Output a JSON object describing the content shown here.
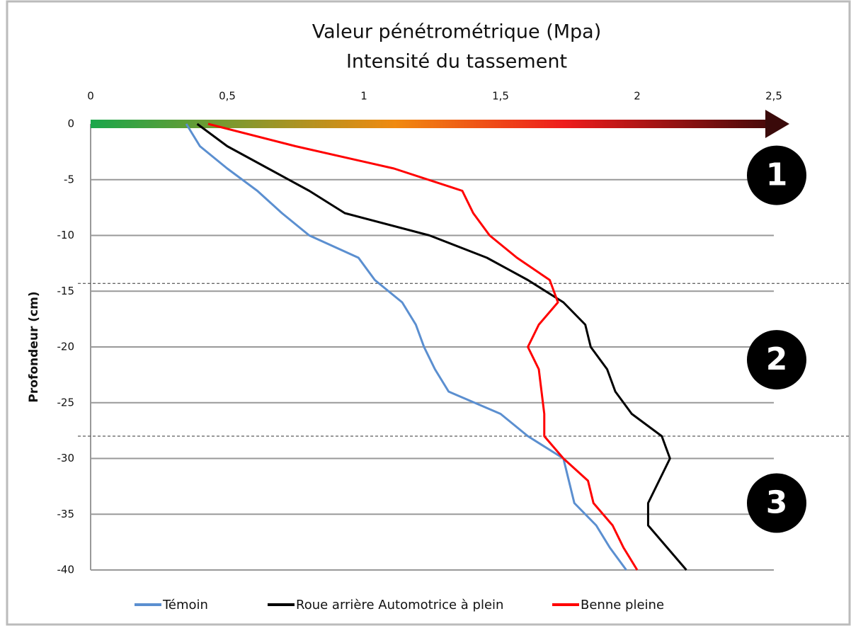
{
  "chart_data": {
    "type": "line",
    "title": "Valeur pénétrométrique (Mpa)",
    "subtitle": "Intensité du tassement",
    "y_label": "Profondeur (cm)",
    "y": [
      0,
      -2,
      -4,
      -6,
      -8,
      -10,
      -12,
      -14,
      -16,
      -18,
      -20,
      -22,
      -24,
      -26,
      -28,
      -30,
      -32,
      -34,
      -36,
      -38,
      -40
    ],
    "series": [
      {
        "name": "Témoin",
        "color": "#5b8fd0",
        "values": [
          0.35,
          0.4,
          0.5,
          0.61,
          0.7,
          0.8,
          0.98,
          1.04,
          1.14,
          1.19,
          1.22,
          1.26,
          1.31,
          1.5,
          1.6,
          1.73,
          1.75,
          1.77,
          1.85,
          1.9,
          1.96
        ]
      },
      {
        "name": "Roue arrière Automotrice à plein",
        "color": "#000000",
        "values": [
          0.39,
          0.5,
          0.65,
          0.8,
          0.93,
          1.24,
          1.45,
          1.6,
          1.73,
          1.81,
          1.83,
          1.89,
          1.92,
          1.98,
          2.09,
          2.12,
          2.08,
          2.04,
          2.04,
          2.11,
          2.18
        ]
      },
      {
        "name": "Benne pleine",
        "color": "#ff0000",
        "values": [
          0.43,
          0.75,
          1.11,
          1.36,
          1.4,
          1.46,
          1.56,
          1.68,
          1.71,
          1.64,
          1.6,
          1.64,
          1.65,
          1.66,
          1.66,
          1.73,
          1.82,
          1.84,
          1.91,
          1.95,
          2.0
        ]
      }
    ],
    "xlim": [
      0,
      2.5
    ],
    "xticks": [
      0,
      {
        "value": 0.5,
        "label": "0,5"
      },
      1,
      {
        "value": 1.5,
        "label": "1,5"
      },
      2,
      {
        "value": 2.5,
        "label": "2,5"
      }
    ],
    "ylim": [
      -40,
      0
    ],
    "yticks": [
      0,
      -5,
      -10,
      -15,
      -20,
      -25,
      -30,
      -35,
      -40
    ],
    "grid": true,
    "zone_boundaries": [
      -14.3,
      -28
    ],
    "annotations": [
      "1",
      "2",
      "3"
    ],
    "legend": "bottom"
  }
}
